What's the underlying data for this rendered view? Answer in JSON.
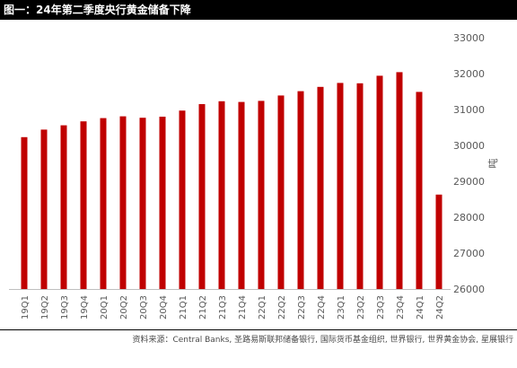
{
  "header": {
    "title": "图一：24年第二季度央行黄金储备下降"
  },
  "footer": {
    "source": "资料来源：Central Banks, 圣路易斯联邦储备银行, 国际货币基金组织, 世界银行, 世界黄金协会, 星展银行"
  },
  "colors": {
    "bar": "#c00000",
    "title_bg": "#000000",
    "title_text": "#ffffff"
  },
  "chart_data": {
    "type": "bar",
    "title": "图一：24年第二季度央行黄金储备下降",
    "categories": [
      "19Q1",
      "19Q2",
      "19Q3",
      "19Q4",
      "20Q1",
      "20Q2",
      "20Q3",
      "20Q4",
      "21Q1",
      "21Q2",
      "21Q3",
      "21Q4",
      "22Q1",
      "22Q2",
      "22Q3",
      "22Q4",
      "23Q1",
      "23Q2",
      "23Q3",
      "23Q4",
      "24Q1",
      "24Q2"
    ],
    "values": [
      30230,
      30440,
      30560,
      30670,
      30760,
      30810,
      30770,
      30800,
      30970,
      31150,
      31230,
      31210,
      31240,
      31390,
      31510,
      31630,
      31740,
      31730,
      31940,
      32040,
      31490,
      28630
    ],
    "ylabel": "吨",
    "xlabel": "",
    "ylim": [
      26000,
      33000
    ],
    "yticks": [
      26000,
      27000,
      28000,
      29000,
      30000,
      31000,
      32000,
      33000
    ],
    "y_axis_side": "right",
    "legend": "none",
    "grid": false
  }
}
